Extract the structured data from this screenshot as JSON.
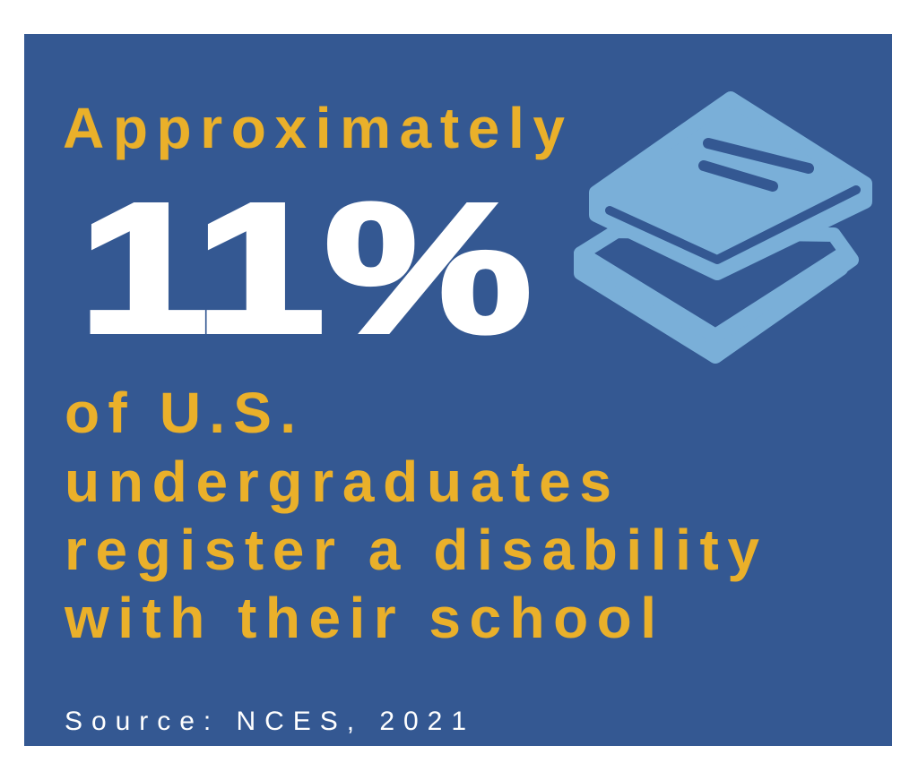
{
  "intro": "Approximately",
  "stat": "11%",
  "description": [
    "of U.S.",
    "undergraduates",
    "register a disability",
    "with their school"
  ],
  "source": "Source: NCES, 2021"
}
